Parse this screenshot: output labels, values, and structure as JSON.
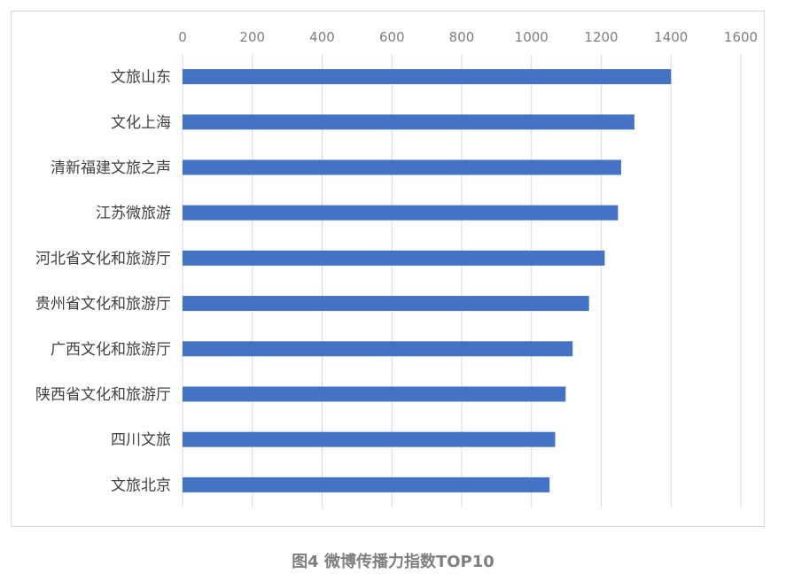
{
  "caption": "图4 微博传播力指数TOP10",
  "colors": {
    "bar": "#4472c4",
    "grid": "#d9d9d9",
    "tick_text": "#7f7f7f",
    "category_text": "#404040",
    "caption_text": "#7f7f7f"
  },
  "chart_data": {
    "type": "bar",
    "orientation": "horizontal",
    "title": "",
    "xlabel": "",
    "ylabel": "",
    "x_axis_position": "top",
    "grid": true,
    "legend": "none",
    "xlim": [
      0,
      1600
    ],
    "x_ticks": [
      0,
      200,
      400,
      600,
      800,
      1000,
      1200,
      1400,
      1600
    ],
    "categories": [
      "文旅山东",
      "文化上海",
      "清新福建文旅之声",
      "江苏微旅游",
      "河北省文化和旅游厅",
      "贵州省文化和旅游厅",
      "广西文化和旅游厅",
      "陕西省文化和旅游厅",
      "四川文旅",
      "文旅北京"
    ],
    "values": [
      1400,
      1295,
      1257,
      1248,
      1210,
      1165,
      1118,
      1098,
      1068,
      1052
    ]
  }
}
